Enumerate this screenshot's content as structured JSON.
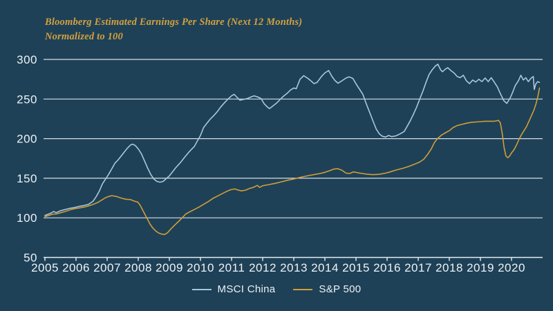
{
  "title": {
    "line1": "Bloomberg Estimated Earnings Per Share (Next 12 Months)",
    "line2": "Normalized to 100"
  },
  "colors": {
    "background": "#1E4157",
    "grid": "#E8EDF2",
    "axis_text": "#EDF2F6",
    "title_text": "#D2A13F",
    "msci_china_line": "#A9C8DB",
    "sp500_line": "#D29E37"
  },
  "legend": [
    {
      "label": "MSCI China",
      "color": "#A9C8DB"
    },
    {
      "label": "S&P 500",
      "color": "#D29E37"
    }
  ],
  "chart_data": {
    "type": "line",
    "title": "Bloomberg Estimated Earnings Per Share (Next 12 Months)",
    "subtitle": "Normalized to 100",
    "xlabel": "",
    "ylabel": "",
    "grid": true,
    "legend_position": "bottom-center",
    "xlim": [
      2005,
      2021
    ],
    "ylim": [
      50,
      310
    ],
    "x_ticks": [
      2005,
      2006,
      2007,
      2008,
      2009,
      2010,
      2011,
      2012,
      2013,
      2014,
      2015,
      2016,
      2017,
      2018,
      2019,
      2020
    ],
    "y_ticks": [
      50,
      100,
      150,
      200,
      250,
      300
    ],
    "y_gridlines": [
      100,
      150,
      200,
      250,
      300
    ],
    "series": [
      {
        "name": "MSCI China",
        "color": "#A9C8DB",
        "points": [
          [
            2005.0,
            103
          ],
          [
            2005.1,
            104.5
          ],
          [
            2005.2,
            106
          ],
          [
            2005.28,
            108
          ],
          [
            2005.36,
            106.5
          ],
          [
            2005.5,
            109
          ],
          [
            2005.65,
            110.5
          ],
          [
            2005.8,
            112
          ],
          [
            2005.95,
            113
          ],
          [
            2006.1,
            114.5
          ],
          [
            2006.25,
            115.5
          ],
          [
            2006.4,
            117
          ],
          [
            2006.55,
            121
          ],
          [
            2006.65,
            127
          ],
          [
            2006.75,
            134
          ],
          [
            2006.85,
            143
          ],
          [
            2006.95,
            149
          ],
          [
            2007.05,
            155
          ],
          [
            2007.15,
            162
          ],
          [
            2007.25,
            169
          ],
          [
            2007.35,
            173
          ],
          [
            2007.45,
            178
          ],
          [
            2007.55,
            183
          ],
          [
            2007.65,
            188
          ],
          [
            2007.75,
            192
          ],
          [
            2007.82,
            193
          ],
          [
            2007.9,
            191.5
          ],
          [
            2008.0,
            187
          ],
          [
            2008.1,
            181
          ],
          [
            2008.2,
            172
          ],
          [
            2008.3,
            163
          ],
          [
            2008.4,
            155
          ],
          [
            2008.5,
            149
          ],
          [
            2008.6,
            146
          ],
          [
            2008.7,
            145
          ],
          [
            2008.8,
            146
          ],
          [
            2008.9,
            149.5
          ],
          [
            2009.0,
            153
          ],
          [
            2009.1,
            158
          ],
          [
            2009.2,
            163
          ],
          [
            2009.35,
            169.5
          ],
          [
            2009.5,
            177
          ],
          [
            2009.65,
            184
          ],
          [
            2009.8,
            190
          ],
          [
            2009.9,
            197
          ],
          [
            2010.0,
            204
          ],
          [
            2010.1,
            214
          ],
          [
            2010.2,
            219
          ],
          [
            2010.3,
            224
          ],
          [
            2010.45,
            230
          ],
          [
            2010.55,
            234.5
          ],
          [
            2010.65,
            240
          ],
          [
            2010.8,
            246.5
          ],
          [
            2010.9,
            250.5
          ],
          [
            2011.0,
            254
          ],
          [
            2011.08,
            256
          ],
          [
            2011.18,
            252
          ],
          [
            2011.27,
            248.5
          ],
          [
            2011.38,
            249.5
          ],
          [
            2011.5,
            250.5
          ],
          [
            2011.62,
            252.5
          ],
          [
            2011.72,
            254
          ],
          [
            2011.85,
            252.5
          ],
          [
            2011.95,
            250.5
          ],
          [
            2012.05,
            244
          ],
          [
            2012.15,
            240
          ],
          [
            2012.22,
            238
          ],
          [
            2012.32,
            241
          ],
          [
            2012.45,
            245
          ],
          [
            2012.55,
            249
          ],
          [
            2012.65,
            253
          ],
          [
            2012.78,
            257
          ],
          [
            2012.9,
            261.5
          ],
          [
            2013.0,
            264
          ],
          [
            2013.08,
            263
          ],
          [
            2013.2,
            275
          ],
          [
            2013.32,
            279.5
          ],
          [
            2013.42,
            277
          ],
          [
            2013.52,
            274
          ],
          [
            2013.65,
            269.5
          ],
          [
            2013.75,
            271
          ],
          [
            2013.88,
            278
          ],
          [
            2014.0,
            283
          ],
          [
            2014.12,
            286
          ],
          [
            2014.22,
            279
          ],
          [
            2014.32,
            273.5
          ],
          [
            2014.42,
            270
          ],
          [
            2014.55,
            273
          ],
          [
            2014.68,
            276.5
          ],
          [
            2014.78,
            278
          ],
          [
            2014.9,
            276
          ],
          [
            2015.02,
            268
          ],
          [
            2015.12,
            262
          ],
          [
            2015.22,
            256
          ],
          [
            2015.32,
            245
          ],
          [
            2015.45,
            232
          ],
          [
            2015.55,
            222
          ],
          [
            2015.65,
            212
          ],
          [
            2015.75,
            206
          ],
          [
            2015.85,
            203
          ],
          [
            2015.95,
            202
          ],
          [
            2016.05,
            204
          ],
          [
            2016.15,
            202.5
          ],
          [
            2016.28,
            203.5
          ],
          [
            2016.42,
            206
          ],
          [
            2016.55,
            209
          ],
          [
            2016.65,
            216
          ],
          [
            2016.75,
            223
          ],
          [
            2016.85,
            231
          ],
          [
            2016.95,
            240
          ],
          [
            2017.05,
            250
          ],
          [
            2017.15,
            260
          ],
          [
            2017.25,
            271
          ],
          [
            2017.35,
            281
          ],
          [
            2017.45,
            287
          ],
          [
            2017.55,
            291.5
          ],
          [
            2017.63,
            294
          ],
          [
            2017.72,
            287
          ],
          [
            2017.78,
            284.5
          ],
          [
            2017.88,
            288
          ],
          [
            2017.95,
            289.5
          ],
          [
            2018.05,
            286
          ],
          [
            2018.15,
            283
          ],
          [
            2018.25,
            278.5
          ],
          [
            2018.35,
            277
          ],
          [
            2018.45,
            280
          ],
          [
            2018.55,
            273
          ],
          [
            2018.65,
            269.5
          ],
          [
            2018.75,
            274
          ],
          [
            2018.85,
            271.5
          ],
          [
            2018.95,
            275
          ],
          [
            2019.05,
            272
          ],
          [
            2019.15,
            276.5
          ],
          [
            2019.25,
            272
          ],
          [
            2019.35,
            277
          ],
          [
            2019.45,
            271
          ],
          [
            2019.55,
            265
          ],
          [
            2019.65,
            256
          ],
          [
            2019.75,
            248
          ],
          [
            2019.85,
            244.5
          ],
          [
            2019.95,
            251
          ],
          [
            2020.02,
            257
          ],
          [
            2020.12,
            267
          ],
          [
            2020.22,
            273
          ],
          [
            2020.3,
            280
          ],
          [
            2020.38,
            274
          ],
          [
            2020.46,
            277
          ],
          [
            2020.54,
            272
          ],
          [
            2020.62,
            276
          ],
          [
            2020.7,
            278.5
          ],
          [
            2020.73,
            262
          ],
          [
            2020.78,
            269
          ],
          [
            2020.84,
            272
          ],
          [
            2020.9,
            271
          ]
        ]
      },
      {
        "name": "S&P 500",
        "color": "#D29E37",
        "points": [
          [
            2005.0,
            101.5
          ],
          [
            2005.12,
            103
          ],
          [
            2005.25,
            104.5
          ],
          [
            2005.38,
            105
          ],
          [
            2005.5,
            106.5
          ],
          [
            2005.65,
            108
          ],
          [
            2005.8,
            110
          ],
          [
            2005.95,
            111.5
          ],
          [
            2006.1,
            112.5
          ],
          [
            2006.25,
            113.5
          ],
          [
            2006.4,
            115
          ],
          [
            2006.55,
            117
          ],
          [
            2006.7,
            119.5
          ],
          [
            2006.85,
            123
          ],
          [
            2006.95,
            125.5
          ],
          [
            2007.05,
            127
          ],
          [
            2007.15,
            128
          ],
          [
            2007.3,
            127
          ],
          [
            2007.45,
            125
          ],
          [
            2007.6,
            123.5
          ],
          [
            2007.75,
            123
          ],
          [
            2007.88,
            121
          ],
          [
            2007.98,
            120
          ],
          [
            2008.06,
            116
          ],
          [
            2008.14,
            110
          ],
          [
            2008.22,
            104
          ],
          [
            2008.3,
            98
          ],
          [
            2008.38,
            92
          ],
          [
            2008.47,
            87
          ],
          [
            2008.56,
            83.5
          ],
          [
            2008.65,
            81
          ],
          [
            2008.75,
            79.5
          ],
          [
            2008.85,
            79
          ],
          [
            2008.95,
            81.5
          ],
          [
            2009.05,
            86
          ],
          [
            2009.15,
            90
          ],
          [
            2009.27,
            94.5
          ],
          [
            2009.4,
            99.5
          ],
          [
            2009.52,
            104.5
          ],
          [
            2009.65,
            107.5
          ],
          [
            2009.8,
            110.5
          ],
          [
            2009.95,
            113.5
          ],
          [
            2010.1,
            117
          ],
          [
            2010.25,
            120.5
          ],
          [
            2010.4,
            124.5
          ],
          [
            2010.55,
            127.5
          ],
          [
            2010.7,
            130.5
          ],
          [
            2010.85,
            133.5
          ],
          [
            2010.97,
            135.5
          ],
          [
            2011.1,
            136.5
          ],
          [
            2011.22,
            135
          ],
          [
            2011.32,
            134
          ],
          [
            2011.45,
            135
          ],
          [
            2011.57,
            137
          ],
          [
            2011.7,
            138.5
          ],
          [
            2011.83,
            141
          ],
          [
            2011.9,
            138.5
          ],
          [
            2012.0,
            140.5
          ],
          [
            2012.2,
            142
          ],
          [
            2012.4,
            143.5
          ],
          [
            2012.6,
            145.5
          ],
          [
            2012.8,
            147.5
          ],
          [
            2013.0,
            149
          ],
          [
            2013.15,
            150.5
          ],
          [
            2013.3,
            152
          ],
          [
            2013.5,
            153.5
          ],
          [
            2013.7,
            155
          ],
          [
            2013.85,
            156
          ],
          [
            2014.0,
            157.5
          ],
          [
            2014.15,
            159.5
          ],
          [
            2014.28,
            161.5
          ],
          [
            2014.42,
            162
          ],
          [
            2014.55,
            160
          ],
          [
            2014.68,
            156.5
          ],
          [
            2014.8,
            156
          ],
          [
            2014.92,
            158
          ],
          [
            2015.05,
            157
          ],
          [
            2015.2,
            156
          ],
          [
            2015.38,
            155
          ],
          [
            2015.55,
            154.5
          ],
          [
            2015.75,
            155
          ],
          [
            2015.95,
            156.5
          ],
          [
            2016.1,
            158
          ],
          [
            2016.3,
            160.5
          ],
          [
            2016.5,
            162.5
          ],
          [
            2016.7,
            165
          ],
          [
            2016.9,
            168
          ],
          [
            2017.05,
            170.5
          ],
          [
            2017.18,
            174
          ],
          [
            2017.3,
            180
          ],
          [
            2017.42,
            187
          ],
          [
            2017.52,
            195
          ],
          [
            2017.62,
            200
          ],
          [
            2017.75,
            204.5
          ],
          [
            2017.88,
            207.5
          ],
          [
            2018.0,
            210
          ],
          [
            2018.12,
            214
          ],
          [
            2018.25,
            216.5
          ],
          [
            2018.4,
            218
          ],
          [
            2018.55,
            219.5
          ],
          [
            2018.7,
            220.5
          ],
          [
            2018.85,
            221
          ],
          [
            2019.0,
            221.5
          ],
          [
            2019.15,
            222
          ],
          [
            2019.3,
            222
          ],
          [
            2019.45,
            222
          ],
          [
            2019.58,
            223
          ],
          [
            2019.64,
            220
          ],
          [
            2019.7,
            207
          ],
          [
            2019.76,
            189
          ],
          [
            2019.82,
            178
          ],
          [
            2019.88,
            176
          ],
          [
            2019.94,
            178
          ],
          [
            2020.0,
            182
          ],
          [
            2020.08,
            186
          ],
          [
            2020.16,
            192
          ],
          [
            2020.24,
            199
          ],
          [
            2020.32,
            205
          ],
          [
            2020.4,
            210
          ],
          [
            2020.48,
            215
          ],
          [
            2020.56,
            222
          ],
          [
            2020.64,
            229
          ],
          [
            2020.72,
            236
          ],
          [
            2020.78,
            243
          ],
          [
            2020.84,
            252
          ],
          [
            2020.9,
            264
          ]
        ]
      }
    ]
  }
}
